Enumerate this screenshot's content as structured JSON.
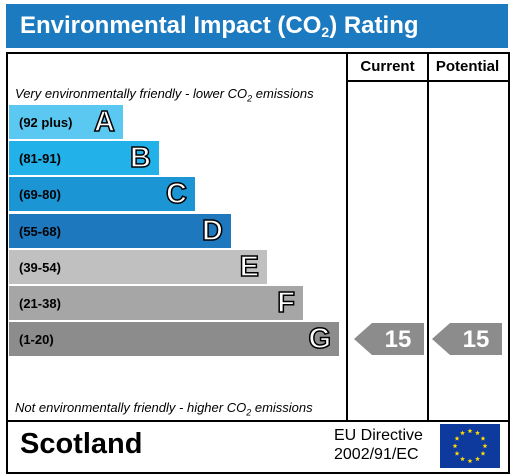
{
  "header": {
    "title_pre": "Environmental Impact (CO",
    "title_sub": "2",
    "title_post": ") Rating",
    "color": "#1c7bc0"
  },
  "columns": {
    "current": "Current",
    "potential": "Potential"
  },
  "notes": {
    "top_pre": "Very environmentally friendly - lower CO",
    "top_sub": "2",
    "top_post": " emissions",
    "bottom_pre": "Not environmentally friendly - higher CO",
    "bottom_sub": "2",
    "bottom_post": " emissions"
  },
  "chart_data": {
    "type": "bar",
    "title": "Environmental Impact (CO2) Rating",
    "categories": [
      "A",
      "B",
      "C",
      "D",
      "E",
      "F",
      "G"
    ],
    "ranges": [
      "(92 plus)",
      "(81-91)",
      "(69-80)",
      "(55-68)",
      "(39-54)",
      "(21-38)",
      "(1-20)"
    ],
    "band_colors": [
      "#5bc8f2",
      "#22b1e8",
      "#1c95d4",
      "#1e78bd",
      "#c0c0c0",
      "#a6a6a6",
      "#8c8c8c"
    ],
    "current": {
      "value": 15,
      "band": "G"
    },
    "potential": {
      "value": 15,
      "band": "G"
    },
    "indicator_color": "#8c8c8c"
  },
  "footer": {
    "region": "Scotland",
    "directive_line1": "EU Directive",
    "directive_line2": "2002/91/EC"
  }
}
